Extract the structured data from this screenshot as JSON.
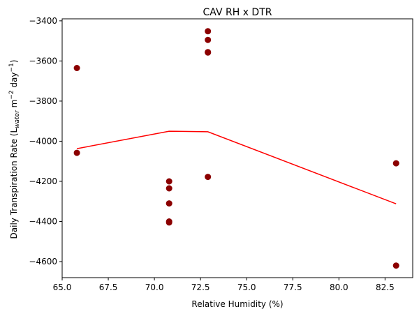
{
  "chart_data": {
    "type": "scatter",
    "title": "CAV RH x DTR",
    "xlabel": "Relative Humidity (%)",
    "ylabel": {
      "prefix": "Daily Transpiration Rate (L",
      "sub": "water",
      "mid1": " m",
      "sup1": "−2",
      "mid2": " day",
      "sup2": "−1",
      "suffix": ")"
    },
    "xlim": [
      65.0,
      84.0
    ],
    "ylim": [
      -4680,
      -3390
    ],
    "xticks": [
      65.0,
      67.5,
      70.0,
      72.5,
      75.0,
      77.5,
      80.0,
      82.5
    ],
    "yticks": [
      -3400,
      -3600,
      -3800,
      -4000,
      -4200,
      -4400,
      -4600
    ],
    "grid": false,
    "series": [
      {
        "kind": "scatter",
        "color": "#8b0000",
        "points": [
          [
            65.8,
            -3635
          ],
          [
            65.8,
            -4058
          ],
          [
            70.8,
            -4200
          ],
          [
            70.8,
            -4235
          ],
          [
            70.8,
            -4310
          ],
          [
            70.8,
            -4400
          ],
          [
            70.8,
            -4405
          ],
          [
            72.9,
            -3452
          ],
          [
            72.9,
            -3495
          ],
          [
            72.9,
            -3556
          ],
          [
            72.9,
            -3558
          ],
          [
            72.9,
            -4178
          ],
          [
            83.1,
            -4110
          ],
          [
            83.1,
            -4620
          ]
        ]
      },
      {
        "kind": "line",
        "color": "#ff0000",
        "points": [
          [
            65.8,
            -4037
          ],
          [
            70.8,
            -3950
          ],
          [
            72.9,
            -3953
          ],
          [
            83.1,
            -4312
          ]
        ]
      }
    ]
  }
}
